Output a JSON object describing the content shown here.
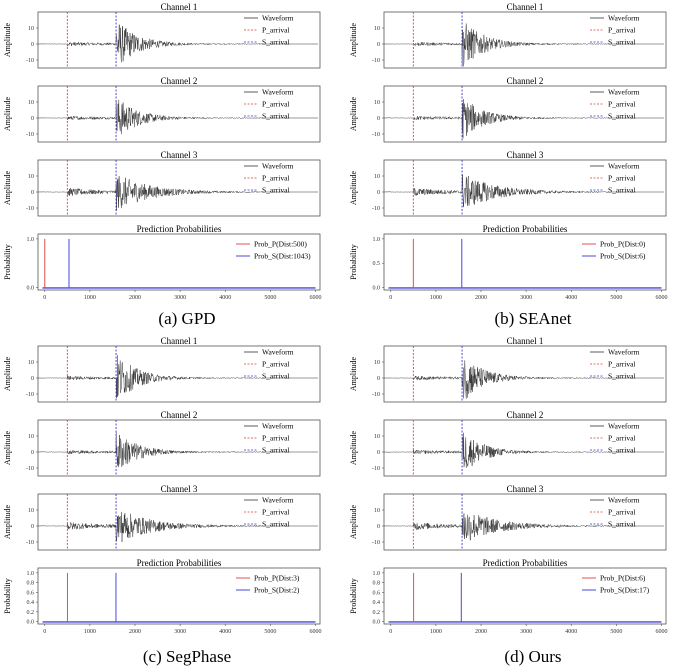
{
  "chart_data": [
    {
      "type": "line",
      "panel_caption": "(a) GPD",
      "channels": [
        {
          "title": "Channel 1",
          "ylabel": "Amplitude",
          "yticks": [
            10,
            0,
            -10
          ],
          "ylim": [
            -15,
            20
          ],
          "peak_amplitude": 16
        },
        {
          "title": "Channel 2",
          "ylabel": "Amplitude",
          "yticks": [
            10,
            0,
            -10
          ],
          "ylim": [
            -15,
            20
          ],
          "peak_amplitude": 14
        },
        {
          "title": "Channel 3",
          "ylabel": "Amplitude",
          "yticks": [
            10,
            0,
            -10
          ],
          "ylim": [
            -15,
            20
          ],
          "peak_amplitude": 12
        }
      ],
      "channel_legend": [
        "Waveform",
        "P_arrival",
        "S_arrival"
      ],
      "p_arrival": 500,
      "s_arrival": 1580,
      "probabilities": {
        "title": "Prediction Probabilities",
        "ylabel": "Probability",
        "yticks": [
          1.0,
          0.0
        ],
        "ylim": [
          -0.05,
          1.1
        ],
        "xlim": [
          -150,
          6100
        ],
        "xticks": [
          0,
          1000,
          2000,
          3000,
          4000,
          5000,
          6000
        ],
        "prob_p_peak": 0,
        "prob_s_peak": 537,
        "legend": [
          "Prob_P(Dist:500)",
          "Prob_S(Dist:1043)"
        ]
      }
    },
    {
      "type": "line",
      "panel_caption": "(b) SEAnet",
      "channels": [
        {
          "title": "Channel 1",
          "ylabel": "Amplitude",
          "yticks": [
            10,
            0,
            -10
          ],
          "ylim": [
            -15,
            20
          ],
          "peak_amplitude": 16
        },
        {
          "title": "Channel 2",
          "ylabel": "Amplitude",
          "yticks": [
            10,
            0,
            -10
          ],
          "ylim": [
            -15,
            20
          ],
          "peak_amplitude": 14
        },
        {
          "title": "Channel 3",
          "ylabel": "Amplitude",
          "yticks": [
            10,
            0,
            -10
          ],
          "ylim": [
            -15,
            20
          ],
          "peak_amplitude": 12
        }
      ],
      "channel_legend": [
        "Waveform",
        "P_arrival",
        "S_arrival"
      ],
      "p_arrival": 500,
      "s_arrival": 1580,
      "probabilities": {
        "title": "Prediction Probabilities",
        "ylabel": "Probability",
        "yticks": [
          1.0,
          0.5,
          0.0
        ],
        "ylim": [
          -0.05,
          1.1
        ],
        "xlim": [
          -150,
          6100
        ],
        "xticks": [
          0,
          1000,
          2000,
          3000,
          4000,
          5000,
          6000
        ],
        "prob_p_peak": 500,
        "prob_s_peak": 1574,
        "legend": [
          "Prob_P(Dist:0)",
          "Prob_S(Dist:6)"
        ]
      }
    },
    {
      "type": "line",
      "panel_caption": "(c) SegPhase",
      "channels": [
        {
          "title": "Channel 1",
          "ylabel": "Amplitude",
          "yticks": [
            10,
            0,
            -10
          ],
          "ylim": [
            -15,
            20
          ],
          "peak_amplitude": 16
        },
        {
          "title": "Channel 2",
          "ylabel": "Amplitude",
          "yticks": [
            10,
            0,
            -10
          ],
          "ylim": [
            -15,
            20
          ],
          "peak_amplitude": 14
        },
        {
          "title": "Channel 3",
          "ylabel": "Amplitude",
          "yticks": [
            10,
            0,
            -10
          ],
          "ylim": [
            -15,
            20
          ],
          "peak_amplitude": 12
        }
      ],
      "channel_legend": [
        "Waveform",
        "P_arrival",
        "S_arrival"
      ],
      "p_arrival": 500,
      "s_arrival": 1580,
      "probabilities": {
        "title": "Prediction Probabilities",
        "ylabel": "Probability",
        "yticks": [
          1.0,
          0.8,
          0.6,
          0.4,
          0.2,
          0.0
        ],
        "ylim": [
          -0.05,
          1.1
        ],
        "xlim": [
          -150,
          6100
        ],
        "xticks": [
          0,
          1000,
          2000,
          3000,
          4000,
          5000,
          6000
        ],
        "prob_p_peak": 503,
        "prob_s_peak": 1578,
        "legend": [
          "Prob_P(Dist:3)",
          "Prob_S(Dist:2)"
        ]
      }
    },
    {
      "type": "line",
      "panel_caption": "(d) Ours",
      "channels": [
        {
          "title": "Channel 1",
          "ylabel": "Amplitude",
          "yticks": [
            10,
            0,
            -10
          ],
          "ylim": [
            -15,
            20
          ],
          "peak_amplitude": 16
        },
        {
          "title": "Channel 2",
          "ylabel": "Amplitude",
          "yticks": [
            10,
            0,
            -10
          ],
          "ylim": [
            -15,
            20
          ],
          "peak_amplitude": 14
        },
        {
          "title": "Channel 3",
          "ylabel": "Amplitude",
          "yticks": [
            10,
            0,
            -10
          ],
          "ylim": [
            -15,
            20
          ],
          "peak_amplitude": 12
        }
      ],
      "channel_legend": [
        "Waveform",
        "P_arrival",
        "S_arrival"
      ],
      "p_arrival": 500,
      "s_arrival": 1580,
      "probabilities": {
        "title": "Prediction Probabilities",
        "ylabel": "Probability",
        "yticks": [
          1.0,
          0.8,
          0.6,
          0.4,
          0.2,
          0.0
        ],
        "ylim": [
          -0.05,
          1.1
        ],
        "xlim": [
          -150,
          6100
        ],
        "xticks": [
          0,
          1000,
          2000,
          3000,
          4000,
          5000,
          6000
        ],
        "prob_p_peak": 506,
        "prob_s_peak": 1563,
        "legend": [
          "Prob_P(Dist:6)",
          "Prob_S(Dist:17)"
        ]
      }
    }
  ],
  "colors": {
    "waveform": "#333333",
    "p_arrival": "#e03c3c",
    "s_arrival": "#3a3ad0",
    "prob_p": "#e05050",
    "prob_s": "#4848d8",
    "axes": "#555555"
  }
}
